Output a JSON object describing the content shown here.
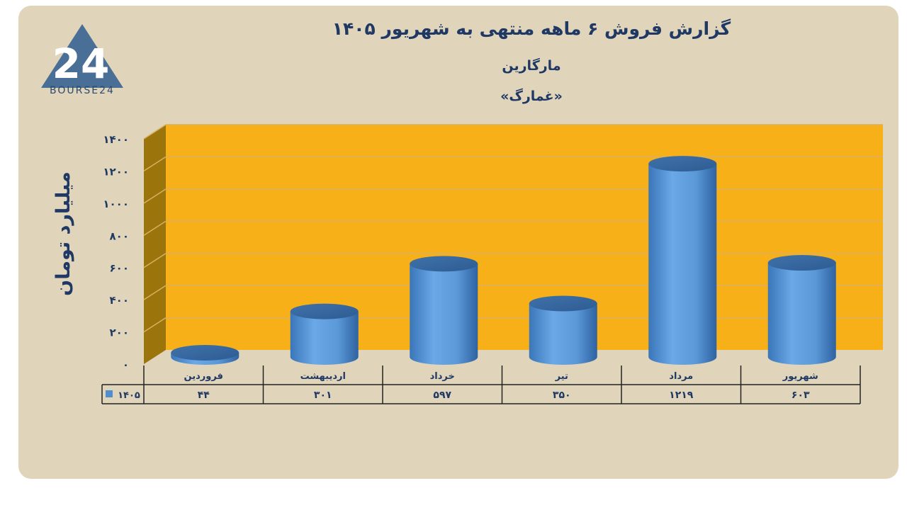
{
  "header": {
    "title": "گزارش  فروش ۶ ماهه منتهی به شهریور ۱۴۰۵",
    "company": "مارگارین",
    "ticker": "«غمارگ»"
  },
  "logo": {
    "text": "BOURSE24",
    "mark": "24"
  },
  "colors": {
    "background": "#e0d5bb",
    "plot": "#f8b019",
    "wall": "#9c740c",
    "bar": "#4f8fd0",
    "text": "#1f3864"
  },
  "chart_data": {
    "type": "bar",
    "ylabel": "میلیارد تومان",
    "ylim": [
      0,
      1400
    ],
    "yticks": [
      "۰",
      "۲۰۰",
      "۴۰۰",
      "۶۰۰",
      "۸۰۰",
      "۱۰۰۰",
      "۱۲۰۰",
      "۱۴۰۰"
    ],
    "ytick_values": [
      0,
      200,
      400,
      600,
      800,
      1000,
      1200,
      1400
    ],
    "grid": true,
    "categories": [
      "فروردین",
      "اردیبهشت",
      "خرداد",
      "تیر",
      "مرداد",
      "شهریور"
    ],
    "series": [
      {
        "name": "۱۴۰۵",
        "values": [
          44,
          301,
          597,
          350,
          1219,
          603
        ],
        "labels": [
          "۴۴",
          "۳۰۱",
          "۵۹۷",
          "۳۵۰",
          "۱۲۱۹",
          "۶۰۳"
        ]
      }
    ],
    "data_table": true
  }
}
